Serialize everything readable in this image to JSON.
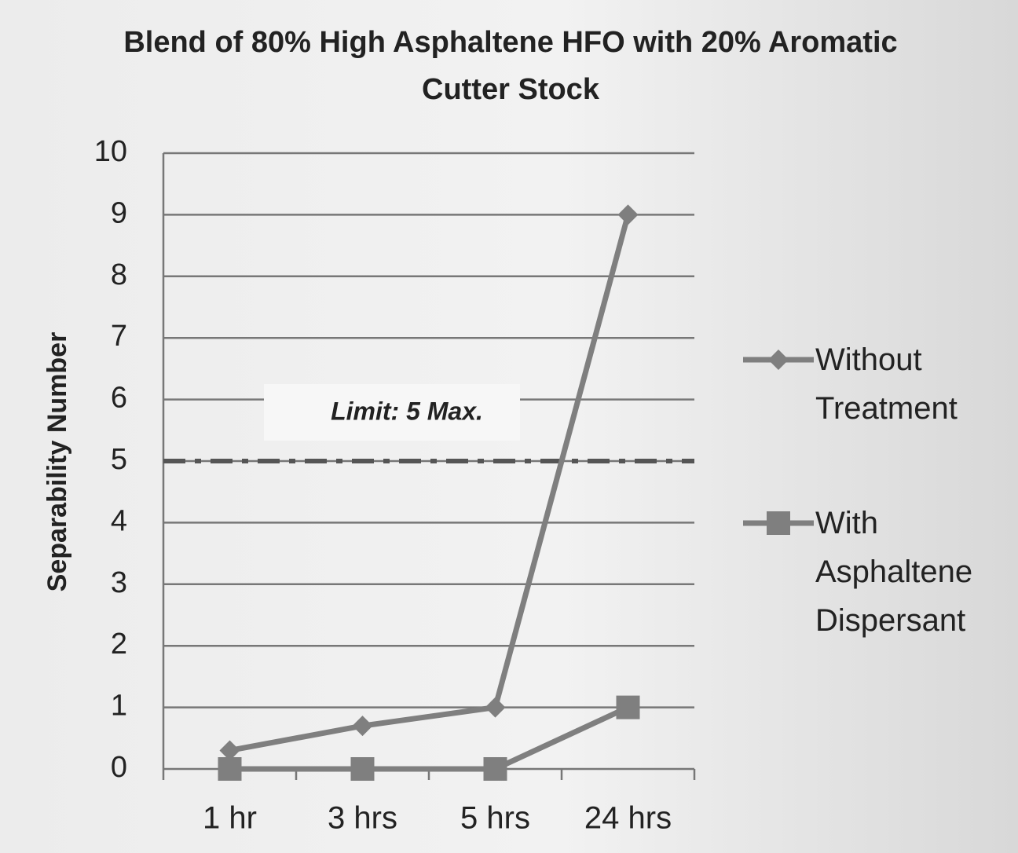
{
  "chart_data": {
    "type": "line",
    "title": "Blend of 80% High Asphaltene HFO with 20% Aromatic Cutter Stock",
    "y_label": "Separability Number",
    "categories": [
      "1 hr",
      "3 hrs",
      "5 hrs",
      "24 hrs"
    ],
    "series": [
      {
        "name": "Without Treatment",
        "color": "#7f7f7f",
        "marker": "diamond",
        "values": [
          0.3,
          0.7,
          1,
          9
        ]
      },
      {
        "name": "With Asphaltene Dispersant",
        "color": "#7f7f7f",
        "marker": "square",
        "values": [
          0,
          0,
          0,
          1
        ]
      }
    ],
    "reference_line": {
      "value": 5,
      "label": "Limit: 5 Max.",
      "color": "#555555"
    },
    "ylim": [
      0,
      10
    ],
    "yticks": [
      0,
      1,
      2,
      3,
      4,
      5,
      6,
      7,
      8,
      9,
      10
    ],
    "grid": true,
    "legend": "right"
  }
}
